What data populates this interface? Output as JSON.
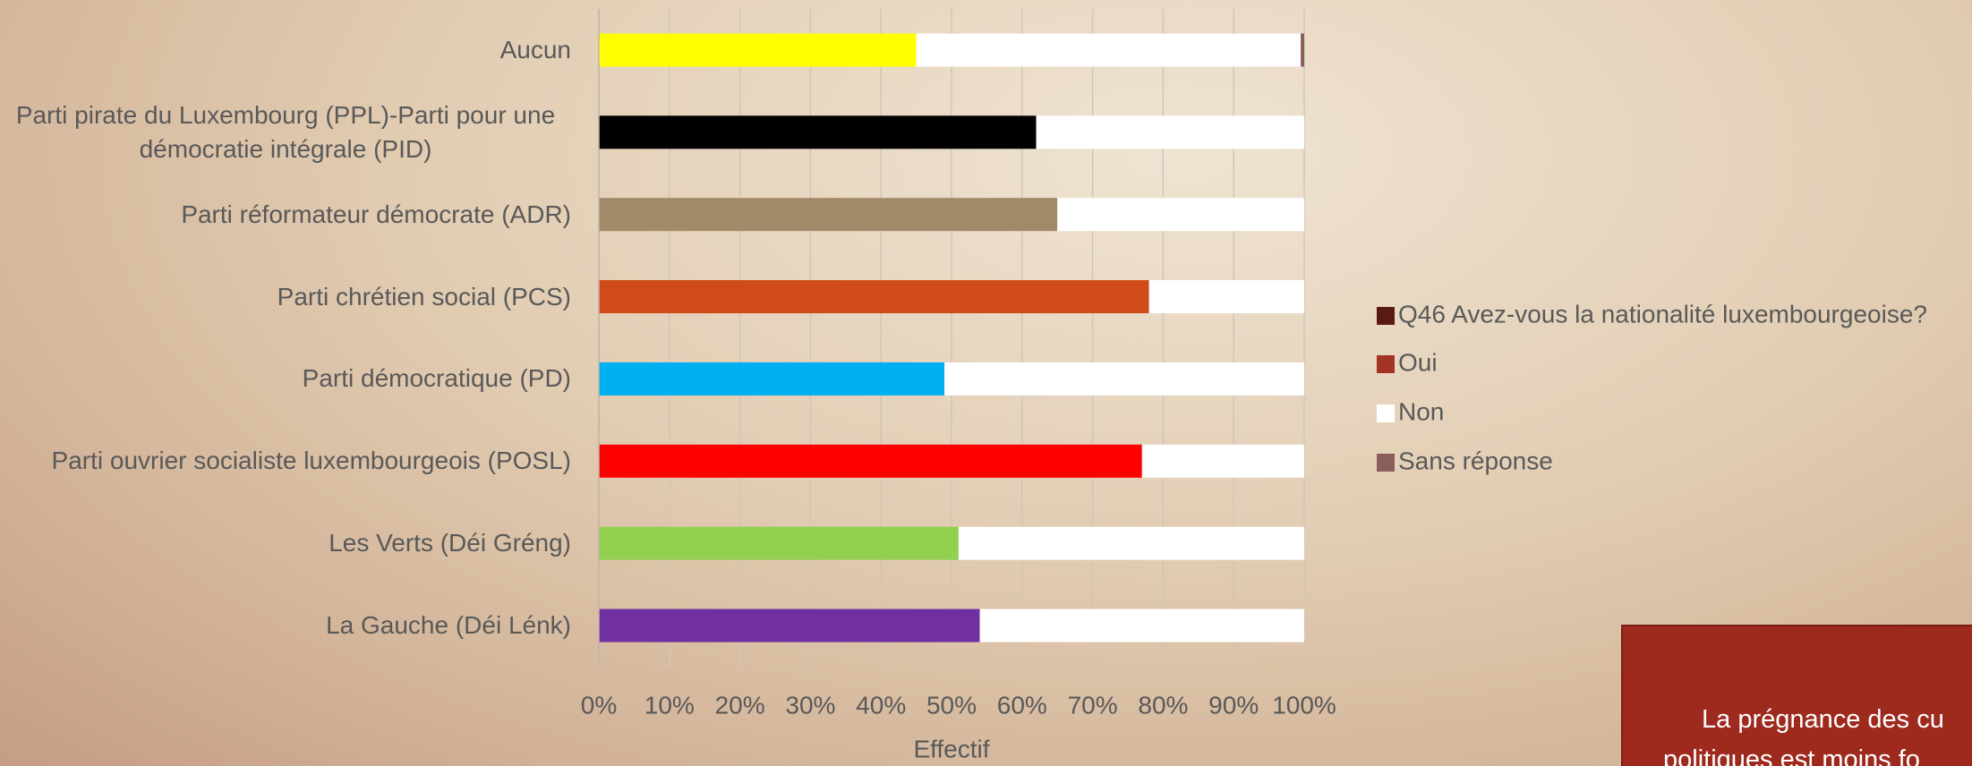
{
  "chart_data": {
    "type": "stacked-bar-horizontal",
    "categories": [
      "Aucun",
      "Parti pirate du Luxembourg (PPL)-Parti pour une démocratie intégrale (PID)",
      "Parti réformateur démocrate (ADR)",
      "Parti chrétien social (PCS)",
      "Parti démocratique (PD)",
      "Parti ouvrier socialiste luxembourgeois (POSL)",
      "Les Verts (Déi Gréng)",
      "La Gauche (Déi Lénk)"
    ],
    "legend_title": "Q46 Avez-vous la nationalité luxembourgeoise?",
    "legend_title_color": "#5a1a14",
    "series": [
      {
        "name": "Oui",
        "color": "#a33324",
        "colors": [
          "#ffff00",
          "#000000",
          "#a08a68",
          "#d04a1a",
          "#00b0f0",
          "#ff0000",
          "#92d050",
          "#7030a0"
        ],
        "values": [
          45,
          62,
          65,
          78,
          49,
          77,
          51,
          54
        ]
      },
      {
        "name": "Non",
        "color": "#ffffff",
        "values": [
          54.5,
          38,
          35,
          22,
          51,
          23,
          49,
          46
        ]
      },
      {
        "name": "Sans réponse",
        "color": "#8b5e5a",
        "values": [
          0.5,
          0,
          0,
          0,
          0,
          0,
          0,
          0
        ]
      }
    ],
    "xlabel": "Effectif",
    "xlim": [
      0,
      100
    ],
    "xticks": [
      {
        "value": 0,
        "label": "0%"
      },
      {
        "value": 10,
        "label": "10%"
      },
      {
        "value": 20,
        "label": "20%"
      },
      {
        "value": 30,
        "label": "30%"
      },
      {
        "value": 40,
        "label": "40%"
      },
      {
        "value": 50,
        "label": "50%"
      },
      {
        "value": 60,
        "label": "60%"
      },
      {
        "value": 70,
        "label": "70%"
      },
      {
        "value": 80,
        "label": "80%"
      },
      {
        "value": 90,
        "label": "90%"
      },
      {
        "value": 100,
        "label": "100%"
      }
    ],
    "grid": true
  },
  "note_box": {
    "lines": [
      "La prégnance des cu",
      "politiques est moins fo"
    ]
  }
}
